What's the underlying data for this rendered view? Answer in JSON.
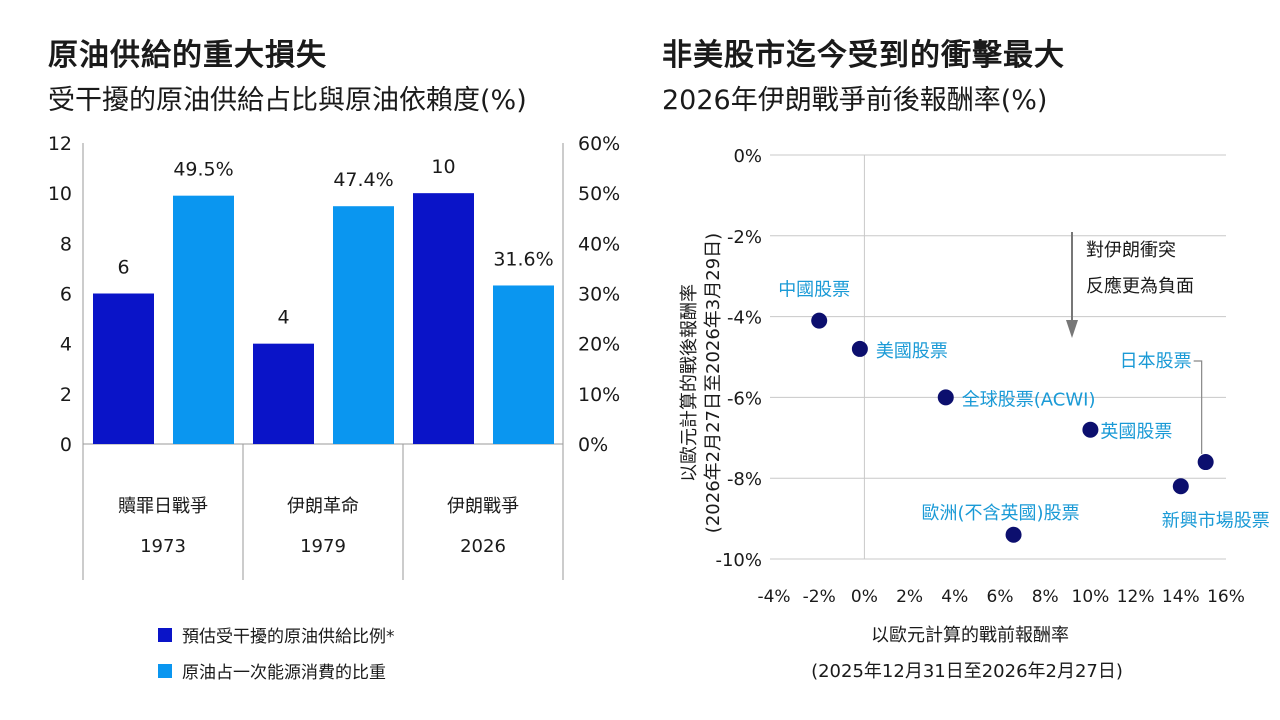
{
  "left": {
    "title": "原油供給的重大損失",
    "subtitle": "受干擾的原油供給占比與原油依賴度(%)",
    "chart_data": {
      "type": "bar",
      "categories": [
        {
          "name": "贖罪日戰爭",
          "year": "1973"
        },
        {
          "name": "伊朗革命",
          "year": "1979"
        },
        {
          "name": "伊朗戰爭",
          "year": "2026"
        }
      ],
      "series": [
        {
          "name": "預估受干擾的原油供給比例*",
          "axis": "left",
          "color": "#0a14c8",
          "values": [
            6,
            4,
            10
          ],
          "labels": [
            "6",
            "4",
            "10"
          ]
        },
        {
          "name": "原油占一次能源消費的比重",
          "axis": "right",
          "color": "#0a96f0",
          "values": [
            49.5,
            47.4,
            31.6
          ],
          "labels": [
            "49.5%",
            "47.4%",
            "31.6%"
          ]
        }
      ],
      "left_axis": {
        "min": 0,
        "max": 12,
        "ticks": [
          "0",
          "2",
          "4",
          "6",
          "8",
          "10",
          "12"
        ]
      },
      "right_axis": {
        "min": 0,
        "max": 60,
        "ticks": [
          "0%",
          "10%",
          "20%",
          "30%",
          "40%",
          "50%",
          "60%"
        ]
      }
    }
  },
  "right": {
    "title": "非美股市迄今受到的衝擊最大",
    "subtitle": "2026年伊朗戰爭前後報酬率(%)",
    "chart_data": {
      "type": "scatter",
      "xlabel": "以歐元計算的戰前報酬率",
      "xlabel2": "(2025年12月31日至2026年2月27日)",
      "ylabel": "以歐元計算的戰後報酬率",
      "ylabel2": "(2026年2月27日至2026年3月29日)",
      "xlim": [
        -4,
        16
      ],
      "ylim": [
        -10,
        0
      ],
      "x_ticks": [
        "-4%",
        "-2%",
        "0%",
        "2%",
        "4%",
        "6%",
        "8%",
        "10%",
        "12%",
        "14%",
        "16%"
      ],
      "y_ticks": [
        "0%",
        "-2%",
        "-4%",
        "-6%",
        "-8%",
        "-10%"
      ],
      "annotation": [
        "對伊朗衝突",
        "反應更為負面"
      ],
      "point_color": "#0c0f6e",
      "label_color": "#1a9ad6",
      "points": [
        {
          "label": "中國股票",
          "x": -2.0,
          "y": -4.1
        },
        {
          "label": "美國股票",
          "x": -0.2,
          "y": -4.8
        },
        {
          "label": "全球股票(ACWI)",
          "x": 3.6,
          "y": -6.0
        },
        {
          "label": "英國股票",
          "x": 10.0,
          "y": -6.8
        },
        {
          "label": "日本股票",
          "x": 15.1,
          "y": -7.6
        },
        {
          "label": "新興市場股票",
          "x": 14.0,
          "y": -8.2
        },
        {
          "label": "歐洲(不含英國)股票",
          "x": 6.6,
          "y": -9.4
        }
      ]
    }
  }
}
